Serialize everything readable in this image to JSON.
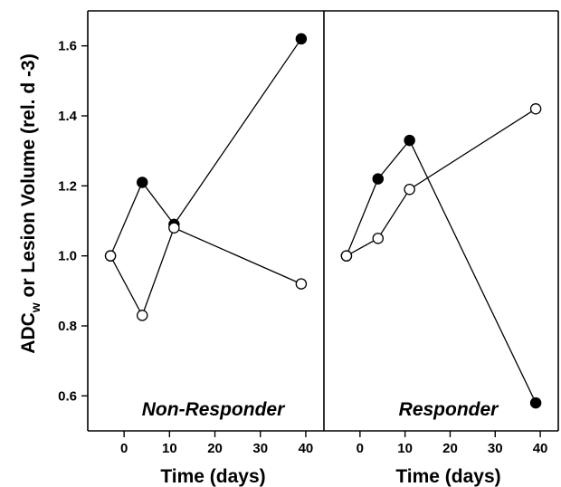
{
  "chart_data": {
    "type": "line",
    "ylabel_main": "ADC",
    "ylabel_sub": "w",
    "ylabel_rest": " or Lesion Volume (rel. d -3)",
    "ylim": [
      0.5,
      1.7
    ],
    "yticks": [
      0.6,
      0.8,
      1.0,
      1.2,
      1.4,
      1.6
    ],
    "ytick_labels": [
      "0.6",
      "0.8",
      "1.0",
      "1.2",
      "1.4",
      "1.6"
    ],
    "grid": false,
    "panels": [
      {
        "label": "Non-Responder",
        "xlabel": "Time (days)",
        "xlim": [
          -8,
          44
        ],
        "xticks": [
          0,
          10,
          20,
          30,
          40
        ],
        "xtick_labels": [
          "0",
          "10",
          "20",
          "30",
          "40"
        ],
        "series": [
          {
            "marker": "filled",
            "x": [
              -3,
              4,
              11,
              39
            ],
            "y": [
              1.0,
              1.21,
              1.09,
              1.62
            ]
          },
          {
            "marker": "open",
            "x": [
              -3,
              4,
              11,
              39
            ],
            "y": [
              1.0,
              0.83,
              1.08,
              0.92
            ]
          }
        ]
      },
      {
        "label": "Responder",
        "xlabel": "Time (days)",
        "xlim": [
          -8,
          44
        ],
        "xticks": [
          0,
          10,
          20,
          30,
          40
        ],
        "xtick_labels": [
          "0",
          "10",
          "20",
          "30",
          "40"
        ],
        "series": [
          {
            "marker": "filled",
            "x": [
              -3,
              4,
              11,
              39
            ],
            "y": [
              1.0,
              1.22,
              1.33,
              0.58
            ]
          },
          {
            "marker": "open",
            "x": [
              -3,
              4,
              11,
              39
            ],
            "y": [
              1.0,
              1.05,
              1.19,
              1.42
            ]
          }
        ]
      }
    ]
  }
}
